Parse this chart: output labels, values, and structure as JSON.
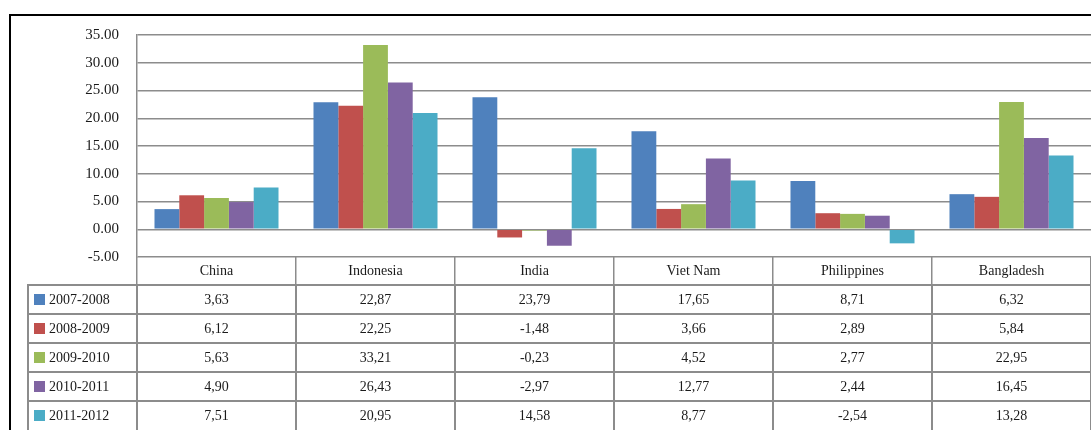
{
  "chart_data": {
    "type": "bar",
    "categories": [
      "China",
      "Indonesia",
      "India",
      "Viet Nam",
      "Philippines",
      "Bangladesh"
    ],
    "series": [
      {
        "name": "2007-2008",
        "color": "#4f81bd",
        "values": [
          3.63,
          22.87,
          23.79,
          17.65,
          8.71,
          6.32
        ],
        "value_labels": [
          "3,63",
          "22,87",
          "23,79",
          "17,65",
          "8,71",
          "6,32"
        ]
      },
      {
        "name": "2008-2009",
        "color": "#c0504d",
        "values": [
          6.12,
          22.25,
          -1.48,
          3.66,
          2.89,
          5.84
        ],
        "value_labels": [
          "6,12",
          "22,25",
          "-1,48",
          "3,66",
          "2,89",
          "5,84"
        ]
      },
      {
        "name": "2009-2010",
        "color": "#9bbb59",
        "values": [
          5.63,
          33.21,
          -0.23,
          4.52,
          2.77,
          22.95
        ],
        "value_labels": [
          "5,63",
          "33,21",
          "-0,23",
          "4,52",
          "2,77",
          "22,95"
        ]
      },
      {
        "name": "2010-2011",
        "color": "#8064a2",
        "values": [
          4.9,
          26.43,
          -2.97,
          12.77,
          2.44,
          16.45
        ],
        "value_labels": [
          "4,90",
          "26,43",
          "-2,97",
          "12,77",
          "2,44",
          "16,45"
        ]
      },
      {
        "name": "2011-2012",
        "color": "#4bacc6",
        "values": [
          7.51,
          20.95,
          14.58,
          8.77,
          -2.54,
          13.28
        ],
        "value_labels": [
          "7,51",
          "20,95",
          "14,58",
          "8,77",
          "-2,54",
          "13,28"
        ]
      }
    ],
    "ylim": [
      -5,
      35
    ],
    "yticks": [
      {
        "value": -5,
        "label": "-5.00"
      },
      {
        "value": 0,
        "label": "0.00"
      },
      {
        "value": 5,
        "label": "5.00"
      },
      {
        "value": 10,
        "label": "10.00"
      },
      {
        "value": 15,
        "label": "15.00"
      },
      {
        "value": 20,
        "label": "20.00"
      },
      {
        "value": 25,
        "label": "25.00"
      },
      {
        "value": 30,
        "label": "30.00"
      },
      {
        "value": 35,
        "label": "35.00"
      }
    ],
    "grid": "y",
    "legend": "bottom left"
  }
}
